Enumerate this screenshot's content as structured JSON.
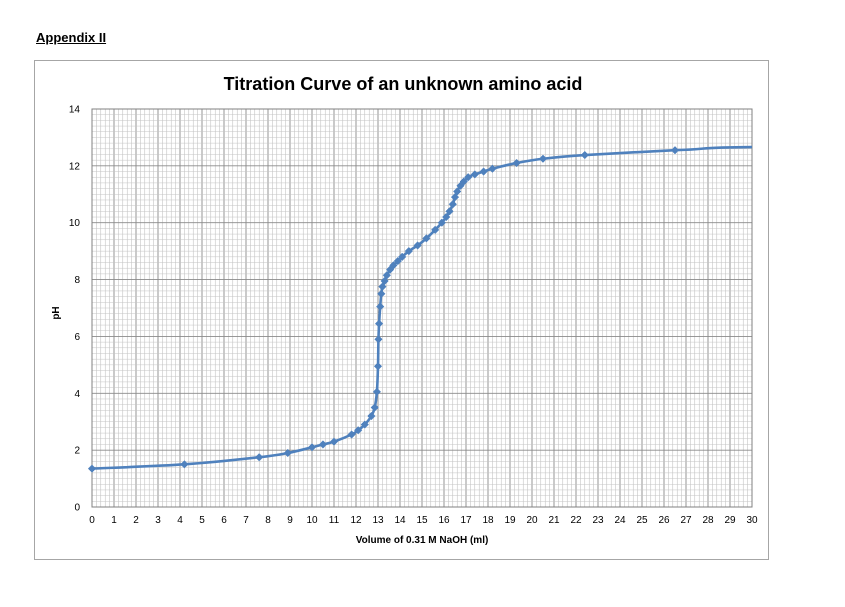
{
  "header": {
    "appendix_label": "Appendix II"
  },
  "chart_data": {
    "type": "line",
    "title": "Titration Curve of an unknown amino acid",
    "xlabel": "Volume of 0.31 M NaOH (ml)",
    "ylabel": "pH",
    "xlim": [
      0,
      30
    ],
    "ylim": [
      0,
      14
    ],
    "x_ticks": [
      "0",
      "1",
      "2",
      "3",
      "4",
      "5",
      "6",
      "7",
      "8",
      "9",
      "10",
      "11",
      "12",
      "13",
      "14",
      "15",
      "16",
      "17",
      "18",
      "19",
      "20",
      "21",
      "22",
      "23",
      "24",
      "25",
      "26",
      "27",
      "28",
      "29",
      "30"
    ],
    "y_ticks": [
      "0",
      "2",
      "4",
      "6",
      "8",
      "10",
      "12",
      "14"
    ],
    "grid": true,
    "series_color": "#4f81bd",
    "series": [
      {
        "x": [
          0,
          4.2,
          7.6,
          8.9,
          10.0,
          10.5,
          11.0,
          11.8,
          12.1,
          12.4,
          12.7,
          12.85,
          12.95,
          13.0,
          13.02,
          13.05,
          13.1,
          13.15,
          13.2,
          13.3,
          13.4,
          13.55,
          13.7,
          13.9,
          14.1,
          14.4,
          14.8,
          15.2,
          15.6,
          15.9,
          16.1,
          16.25,
          16.4,
          16.5,
          16.6,
          16.75,
          16.9,
          17.1,
          17.4,
          17.8,
          18.2,
          19.3,
          20.5,
          22.4,
          26.5
        ],
        "y": [
          1.35,
          1.5,
          1.75,
          1.9,
          2.1,
          2.2,
          2.3,
          2.55,
          2.7,
          2.9,
          3.2,
          3.5,
          4.05,
          4.95,
          5.9,
          6.45,
          7.05,
          7.5,
          7.75,
          7.95,
          8.15,
          8.35,
          8.5,
          8.65,
          8.8,
          9.0,
          9.2,
          9.45,
          9.75,
          10.0,
          10.2,
          10.4,
          10.65,
          10.9,
          11.1,
          11.3,
          11.45,
          11.6,
          11.7,
          11.8,
          11.9,
          12.1,
          12.25,
          12.38,
          12.55
        ]
      }
    ]
  }
}
